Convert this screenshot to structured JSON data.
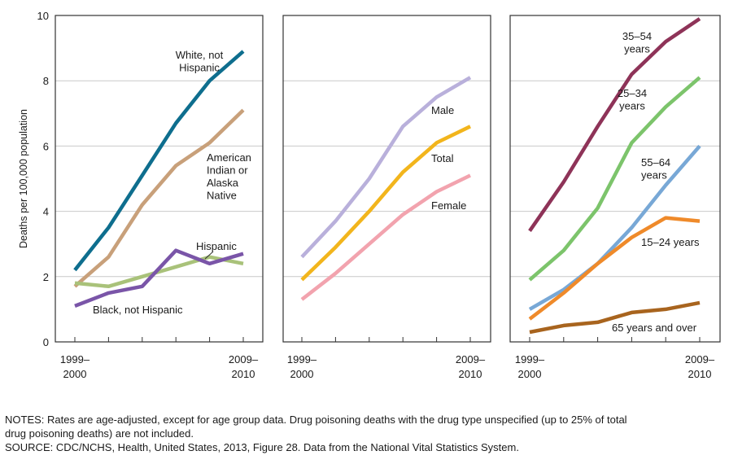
{
  "chart_data": [
    {
      "type": "line",
      "panel": "left",
      "ylabel": "Deaths per 100,000 population",
      "ylim": [
        0,
        10
      ],
      "yticks": [
        "0",
        "2",
        "4",
        "6",
        "8",
        "10"
      ],
      "x": [
        0,
        1,
        2,
        3,
        4,
        5
      ],
      "xtick_labels": [
        {
          "line1": "1999–",
          "line2": "2000"
        },
        {
          "line1": "2009–",
          "line2": "2010"
        }
      ],
      "grid": "horizontal",
      "series": [
        {
          "name": "White, not Hispanic",
          "label_lines": [
            "White, not",
            "Hispanic"
          ],
          "color": "#0e6e8e",
          "values": [
            2.2,
            3.5,
            5.1,
            6.7,
            8.0,
            8.9
          ]
        },
        {
          "name": "American Indian or Alaska Native",
          "label_lines": [
            "American",
            "Indian or",
            "Alaska",
            "Native"
          ],
          "color": "#c8a07a",
          "values": [
            1.7,
            2.6,
            4.2,
            5.4,
            6.1,
            7.1
          ]
        },
        {
          "name": "Hispanic",
          "label_lines": [
            "Hispanic"
          ],
          "color": "#a9c27a",
          "values": [
            1.8,
            1.7,
            2.0,
            2.3,
            2.6,
            2.4
          ]
        },
        {
          "name": "Black, not Hispanic",
          "label_lines": [
            "Black, not Hispanic"
          ],
          "color": "#7a55a8",
          "values": [
            1.1,
            1.5,
            1.7,
            2.8,
            2.4,
            2.7
          ]
        }
      ]
    },
    {
      "type": "line",
      "panel": "middle",
      "ylim": [
        0,
        10
      ],
      "x": [
        0,
        1,
        2,
        3,
        4,
        5
      ],
      "xtick_labels": [
        {
          "line1": "1999–",
          "line2": "2000"
        },
        {
          "line1": "2009–",
          "line2": "2010"
        }
      ],
      "grid": "horizontal",
      "series": [
        {
          "name": "Male",
          "label_lines": [
            "Male"
          ],
          "color": "#b9b0db",
          "values": [
            2.6,
            3.7,
            5.0,
            6.6,
            7.5,
            8.1
          ]
        },
        {
          "name": "Total",
          "label_lines": [
            "Total"
          ],
          "color": "#f2b51c",
          "values": [
            1.9,
            2.9,
            4.0,
            5.2,
            6.1,
            6.6
          ]
        },
        {
          "name": "Female",
          "label_lines": [
            "Female"
          ],
          "color": "#f2a3ae",
          "values": [
            1.3,
            2.1,
            3.0,
            3.9,
            4.6,
            5.1
          ]
        }
      ]
    },
    {
      "type": "line",
      "panel": "right",
      "ylim": [
        0,
        10
      ],
      "x": [
        0,
        1,
        2,
        3,
        4,
        5
      ],
      "xtick_labels": [
        {
          "line1": "1999–",
          "line2": "2000"
        },
        {
          "line1": "2009–",
          "line2": "2010"
        }
      ],
      "grid": "horizontal",
      "series": [
        {
          "name": "35–54 years",
          "label_lines": [
            "35–54",
            "years"
          ],
          "color": "#8e3358",
          "values": [
            3.4,
            4.9,
            6.6,
            8.2,
            9.2,
            9.9
          ]
        },
        {
          "name": "25–34 years",
          "label_lines": [
            "25–34",
            "years"
          ],
          "color": "#7cc46b",
          "values": [
            1.9,
            2.8,
            4.1,
            6.1,
            7.2,
            8.1
          ]
        },
        {
          "name": "55–64 years",
          "label_lines": [
            "55–64",
            "years"
          ],
          "color": "#78a8d6",
          "values": [
            1.0,
            1.6,
            2.4,
            3.5,
            4.8,
            6.0
          ]
        },
        {
          "name": "15–24 years",
          "label_lines": [
            "15–24 years"
          ],
          "color": "#ef8a2a",
          "values": [
            0.7,
            1.5,
            2.4,
            3.2,
            3.8,
            3.7
          ]
        },
        {
          "name": "65 years and over",
          "label_lines": [
            "65 years and over"
          ],
          "color": "#a8641e",
          "values": [
            0.3,
            0.5,
            0.6,
            0.9,
            1.0,
            1.2
          ]
        }
      ]
    }
  ],
  "notes": {
    "line1": "NOTES: Rates are age-adjusted, except for age group data. Drug poisoning deaths with the drug type unspecified (up to 25% of total",
    "line2": "drug poisoning deaths) are not included.",
    "source": "SOURCE: CDC/NCHS, Health, United States, 2013, Figure 28. Data from the National Vital Statistics System."
  }
}
